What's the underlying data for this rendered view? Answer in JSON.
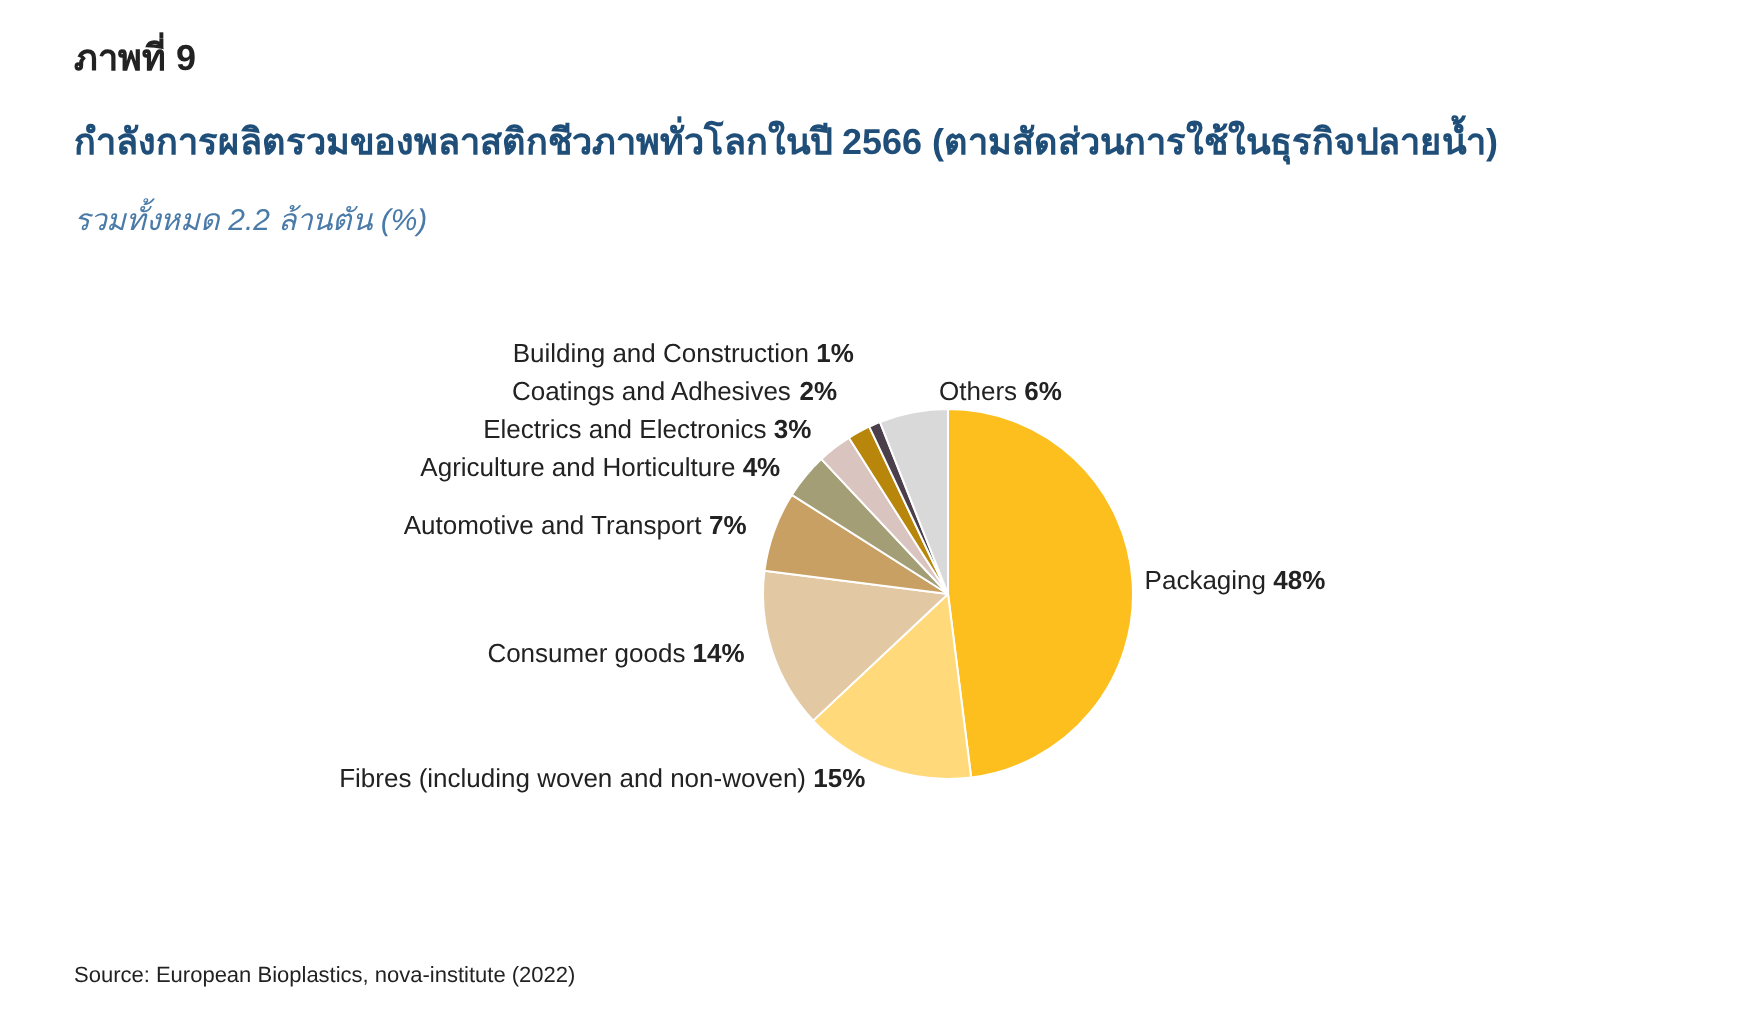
{
  "chart_data": {
    "type": "pie",
    "title": "กำลังการผลิตรวมของพลาสติกชีวภาพทั่วโลกในปี 2566 (ตามสัดส่วนการใช้ในธุรกิจปลายน้ำ)",
    "subtitle": "รวมทั้งหมด 2.2 ล้านตัน (%)",
    "annotations": [
      "ภาพที่ 9",
      "Source: European Bioplastics, nova-institute (2022)"
    ],
    "categories": [
      "Packaging",
      "Fibres (including woven and non-woven)",
      "Consumer goods",
      "Automotive and Transport",
      "Agriculture and Horticulture",
      "Electrics and Electronics",
      "Coatings and Adhesives",
      "Building and Construction",
      "Others"
    ],
    "values": [
      48,
      15,
      14,
      7,
      4,
      3,
      2,
      1,
      6
    ],
    "colors": [
      "#fdbf1e",
      "#ffd97a",
      "#e2c9a4",
      "#c9a063",
      "#a39e76",
      "#d9c4bf",
      "#b8860b",
      "#4a3f4a",
      "#d9d9d9"
    ],
    "value_labels": [
      "48%",
      "15%",
      "14%",
      "7%",
      "4%",
      "3%",
      "2%",
      "1%",
      "6%"
    ],
    "legend": false
  }
}
